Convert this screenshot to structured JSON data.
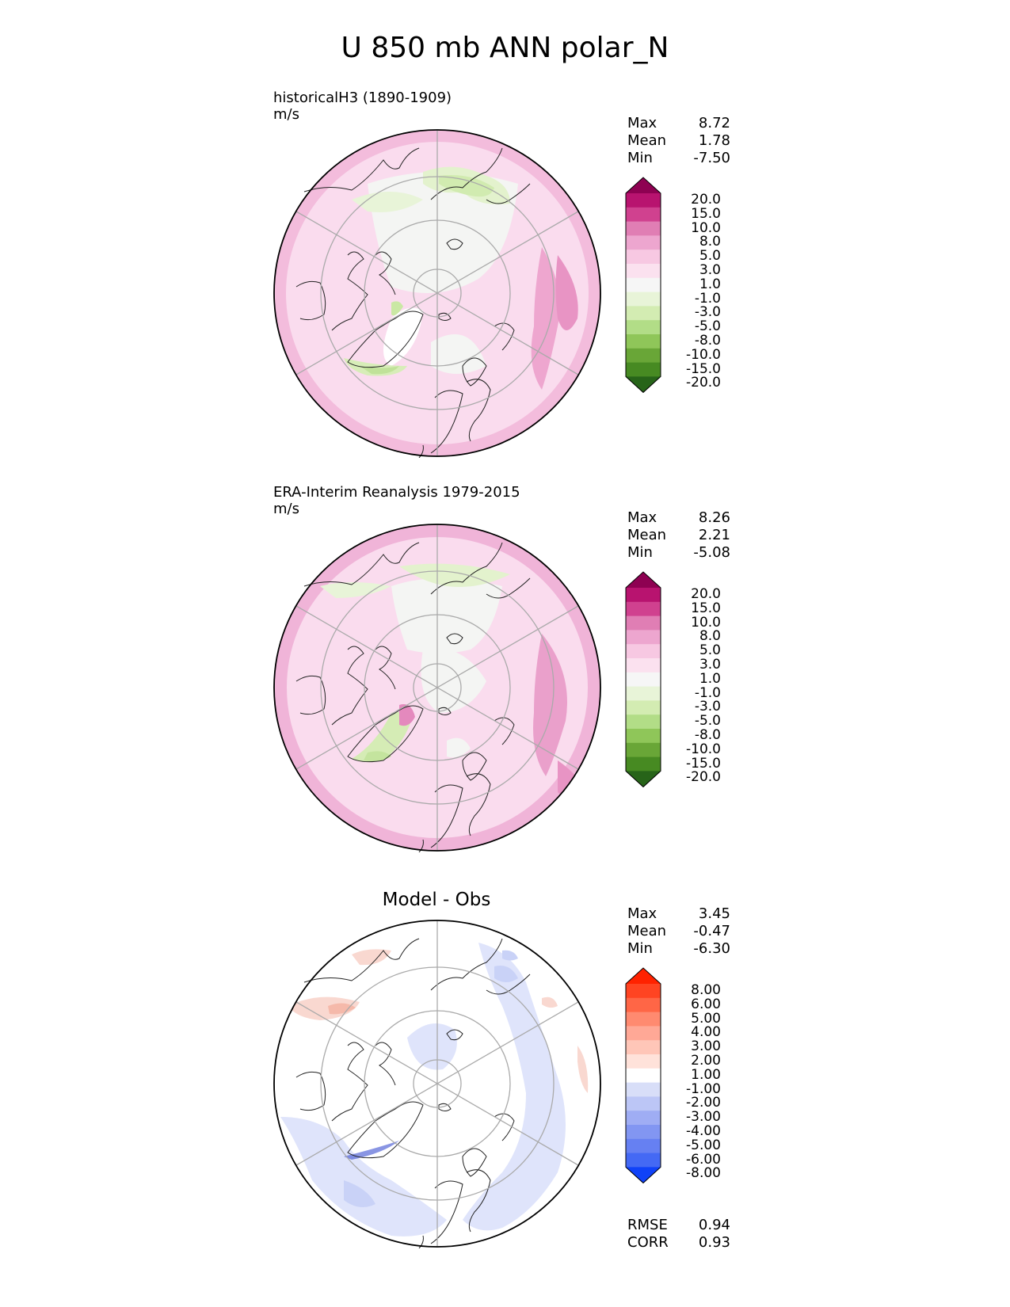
{
  "figure": {
    "title": "U 850 mb ANN polar_N"
  },
  "panels": [
    {
      "id": "test",
      "subtitle": "historicalH3 (1890-1909)",
      "units": "m/s",
      "center_title": "",
      "stats": [
        {
          "label": "Max",
          "value": "8.72"
        },
        {
          "label": "Mean",
          "value": "1.78"
        },
        {
          "label": "Min",
          "value": "-7.50"
        }
      ],
      "colorbar": {
        "ticks": [
          "20.0",
          "15.0",
          "10.0",
          "8.0",
          "5.0",
          "3.0",
          "1.0",
          "-1.0",
          "-3.0",
          "-5.0",
          "-8.0",
          "-10.0",
          "-15.0",
          "-20.0"
        ],
        "colors": [
          "#8e0152",
          "#b8136f",
          "#d0418f",
          "#e07eb4",
          "#eda6cf",
          "#f7c8e2",
          "#fbe1ef",
          "#f6f6f6",
          "#e8f4d8",
          "#d3ecb2",
          "#b2dd87",
          "#8fc659",
          "#69a637",
          "#478a22",
          "#276419"
        ]
      },
      "map_palette": [
        "#fadcee",
        "#f6c9e2",
        "#eda8d0",
        "#e489bd",
        "#f4f5f3",
        "#e3f2cd",
        "#cae8a4",
        "#ffffff"
      ]
    },
    {
      "id": "ref",
      "subtitle": "ERA-Interim Reanalysis 1979-2015",
      "units": "m/s",
      "center_title": "",
      "stats": [
        {
          "label": "Max",
          "value": "8.26"
        },
        {
          "label": "Mean",
          "value": "2.21"
        },
        {
          "label": "Min",
          "value": "-5.08"
        }
      ],
      "colorbar": {
        "ticks": [
          "20.0",
          "15.0",
          "10.0",
          "8.0",
          "5.0",
          "3.0",
          "1.0",
          "-1.0",
          "-3.0",
          "-5.0",
          "-8.0",
          "-10.0",
          "-15.0",
          "-20.0"
        ],
        "colors": [
          "#8e0152",
          "#b8136f",
          "#d0418f",
          "#e07eb4",
          "#eda6cf",
          "#f7c8e2",
          "#fbe1ef",
          "#f6f6f6",
          "#e8f4d8",
          "#d3ecb2",
          "#b2dd87",
          "#8fc659",
          "#69a637",
          "#478a22",
          "#276419"
        ]
      },
      "map_palette": [
        "#fadcee",
        "#f6c9e2",
        "#eda8d0",
        "#e489bd",
        "#f4f5f3",
        "#e3f2cd",
        "#cae8a4",
        "#ffffff"
      ]
    },
    {
      "id": "diff",
      "subtitle": "",
      "units": "",
      "center_title": "Model - Obs",
      "stats": [
        {
          "label": "Max",
          "value": "3.45"
        },
        {
          "label": "Mean",
          "value": "-0.47"
        },
        {
          "label": "Min",
          "value": "-6.30"
        }
      ],
      "colorbar": {
        "ticks": [
          "8.00",
          "6.00",
          "5.00",
          "4.00",
          "3.00",
          "2.00",
          "1.00",
          "-1.00",
          "-2.00",
          "-3.00",
          "-4.00",
          "-5.00",
          "-6.00",
          "-8.00"
        ],
        "colors": [
          "#ff2200",
          "#ff4422",
          "#ff6646",
          "#ff8a70",
          "#ffa896",
          "#ffc6b8",
          "#ffe2da",
          "#ffffff",
          "#d8def8",
          "#bcc6f6",
          "#9fadf4",
          "#8296f2",
          "#6680f2",
          "#4469f4",
          "#1042f8"
        ]
      },
      "metrics": [
        {
          "label": "RMSE",
          "value": "0.94"
        },
        {
          "label": "CORR",
          "value": "0.93"
        }
      ],
      "map_palette": [
        "#ffffff",
        "#dfe4fb",
        "#c9d2f7",
        "#f9d8d0",
        "#f5b9aa",
        "#3a4fd0"
      ]
    }
  ]
}
